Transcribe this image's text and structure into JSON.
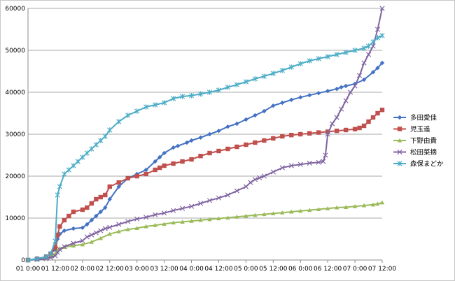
{
  "chart_data": {
    "type": "line",
    "title": "",
    "xlabel": "",
    "ylabel": "",
    "xlim": [
      0,
      156
    ],
    "ylim": [
      0,
      60000
    ],
    "y_ticks": [
      0,
      10000,
      20000,
      30000,
      40000,
      50000,
      60000
    ],
    "x_ticks": [
      {
        "value": 0,
        "label": "01 0:00"
      },
      {
        "value": 12,
        "label": "01 12:00"
      },
      {
        "value": 24,
        "label": "02 0:00"
      },
      {
        "value": 36,
        "label": "02 12:00"
      },
      {
        "value": 48,
        "label": "03 0:00"
      },
      {
        "value": 60,
        "label": "03 12:00"
      },
      {
        "value": 72,
        "label": "04 0:00"
      },
      {
        "value": 84,
        "label": "04 12:00"
      },
      {
        "value": 96,
        "label": "05 0:00"
      },
      {
        "value": 108,
        "label": "05 12:00"
      },
      {
        "value": 120,
        "label": "06 0:00"
      },
      {
        "value": 132,
        "label": "06 12:00"
      },
      {
        "value": 144,
        "label": "07 0:00"
      },
      {
        "value": 156,
        "label": "07 12:00"
      }
    ],
    "grid": "horizontal",
    "legend_position": "right",
    "series": [
      {
        "name": "多田愛佳",
        "color": "#4472c4",
        "marker": "diamond",
        "x": [
          0,
          4,
          8,
          10,
          12,
          13,
          14,
          16,
          20,
          24,
          26,
          28,
          30,
          32,
          34,
          36,
          40,
          44,
          48,
          52,
          56,
          58,
          60,
          64,
          66,
          70,
          72,
          76,
          80,
          84,
          88,
          92,
          96,
          100,
          104,
          108,
          112,
          116,
          120,
          124,
          128,
          132,
          136,
          138,
          140,
          144,
          148,
          152,
          154,
          156
        ],
        "y": [
          0,
          200,
          800,
          1500,
          2500,
          5000,
          6200,
          7000,
          7500,
          7700,
          8500,
          9500,
          10500,
          11500,
          12500,
          14500,
          17500,
          19500,
          20500,
          21500,
          23500,
          24500,
          25500,
          26800,
          27200,
          28000,
          28500,
          29200,
          30000,
          30800,
          31800,
          32500,
          33500,
          34500,
          35500,
          36800,
          37500,
          38200,
          38800,
          39300,
          39800,
          40300,
          40800,
          41200,
          41500,
          42000,
          43000,
          44800,
          45800,
          47000
        ]
      },
      {
        "name": "児玉遥",
        "color": "#c0504d",
        "marker": "square",
        "x": [
          0,
          4,
          8,
          10,
          12,
          13,
          14,
          16,
          18,
          20,
          24,
          26,
          28,
          30,
          32,
          34,
          36,
          40,
          44,
          48,
          52,
          56,
          58,
          60,
          64,
          68,
          72,
          76,
          80,
          84,
          88,
          92,
          96,
          100,
          104,
          108,
          112,
          116,
          120,
          124,
          128,
          132,
          136,
          140,
          144,
          146,
          148,
          150,
          152,
          154,
          156
        ],
        "y": [
          0,
          300,
          800,
          1500,
          3000,
          6000,
          8000,
          9500,
          10500,
          11500,
          12000,
          12500,
          13500,
          14500,
          15000,
          15500,
          17500,
          18500,
          19500,
          20000,
          20500,
          21500,
          22000,
          22500,
          23000,
          23500,
          24000,
          24800,
          25500,
          26000,
          26500,
          27000,
          27500,
          28000,
          28500,
          29000,
          29500,
          29800,
          30000,
          30200,
          30400,
          30600,
          30800,
          31000,
          31200,
          31500,
          32000,
          33000,
          34000,
          35000,
          35800
        ]
      },
      {
        "name": "下野由貴",
        "color": "#9bbb59",
        "marker": "triangle",
        "x": [
          0,
          4,
          8,
          10,
          12,
          13,
          14,
          16,
          20,
          24,
          28,
          32,
          36,
          40,
          44,
          48,
          52,
          56,
          60,
          64,
          68,
          72,
          76,
          80,
          84,
          88,
          92,
          96,
          100,
          104,
          108,
          112,
          116,
          120,
          124,
          128,
          132,
          136,
          140,
          144,
          148,
          152,
          154,
          156
        ],
        "y": [
          0,
          100,
          400,
          800,
          1500,
          2200,
          2800,
          3100,
          3400,
          3700,
          4300,
          5200,
          6200,
          6800,
          7300,
          7600,
          8000,
          8300,
          8600,
          8900,
          9100,
          9300,
          9500,
          9700,
          9900,
          10100,
          10300,
          10500,
          10700,
          10900,
          11100,
          11300,
          11500,
          11700,
          11900,
          12100,
          12300,
          12500,
          12600,
          12800,
          13000,
          13200,
          13400,
          13700
        ]
      },
      {
        "name": "松田菜摘",
        "color": "#8064a2",
        "marker": "x",
        "x": [
          0,
          4,
          8,
          10,
          12,
          13,
          14,
          16,
          20,
          24,
          26,
          28,
          30,
          32,
          34,
          36,
          40,
          44,
          48,
          52,
          56,
          60,
          64,
          68,
          72,
          76,
          80,
          84,
          88,
          92,
          96,
          98,
          100,
          102,
          104,
          108,
          112,
          116,
          120,
          124,
          128,
          130,
          131,
          132,
          134,
          136,
          138,
          140,
          142,
          144,
          146,
          148,
          150,
          152,
          154,
          156
        ],
        "y": [
          0,
          100,
          300,
          600,
          1000,
          1800,
          2500,
          3200,
          4000,
          4600,
          5500,
          6000,
          6500,
          7000,
          7500,
          7800,
          8500,
          9200,
          9800,
          10200,
          10800,
          11200,
          11800,
          12300,
          12800,
          13500,
          14200,
          14800,
          15500,
          16500,
          17500,
          18500,
          19200,
          19600,
          20000,
          21000,
          22000,
          22500,
          22800,
          23100,
          23300,
          23500,
          25000,
          30000,
          32500,
          34000,
          36000,
          38000,
          40000,
          41500,
          44000,
          47000,
          49000,
          51000,
          55000,
          60000
        ]
      },
      {
        "name": "森保まどか",
        "color": "#4bacc6",
        "marker": "star",
        "x": [
          0,
          4,
          8,
          10,
          12,
          13,
          14,
          16,
          18,
          20,
          22,
          24,
          26,
          28,
          30,
          32,
          34,
          36,
          40,
          44,
          48,
          52,
          56,
          60,
          64,
          68,
          72,
          76,
          80,
          84,
          88,
          92,
          96,
          100,
          104,
          108,
          112,
          116,
          120,
          124,
          128,
          132,
          136,
          140,
          144,
          148,
          150,
          152,
          154,
          156
        ],
        "y": [
          0,
          300,
          800,
          1500,
          4500,
          15500,
          17500,
          20500,
          21500,
          22500,
          23500,
          24500,
          25500,
          26500,
          27500,
          28500,
          29500,
          31000,
          33000,
          34500,
          35500,
          36500,
          37000,
          37500,
          38500,
          39000,
          39200,
          39600,
          40000,
          40500,
          41200,
          41800,
          42500,
          43200,
          43800,
          44500,
          45200,
          46000,
          46800,
          47500,
          48000,
          48500,
          49000,
          49500,
          50000,
          50500,
          51000,
          52000,
          53000,
          53500
        ]
      }
    ]
  }
}
